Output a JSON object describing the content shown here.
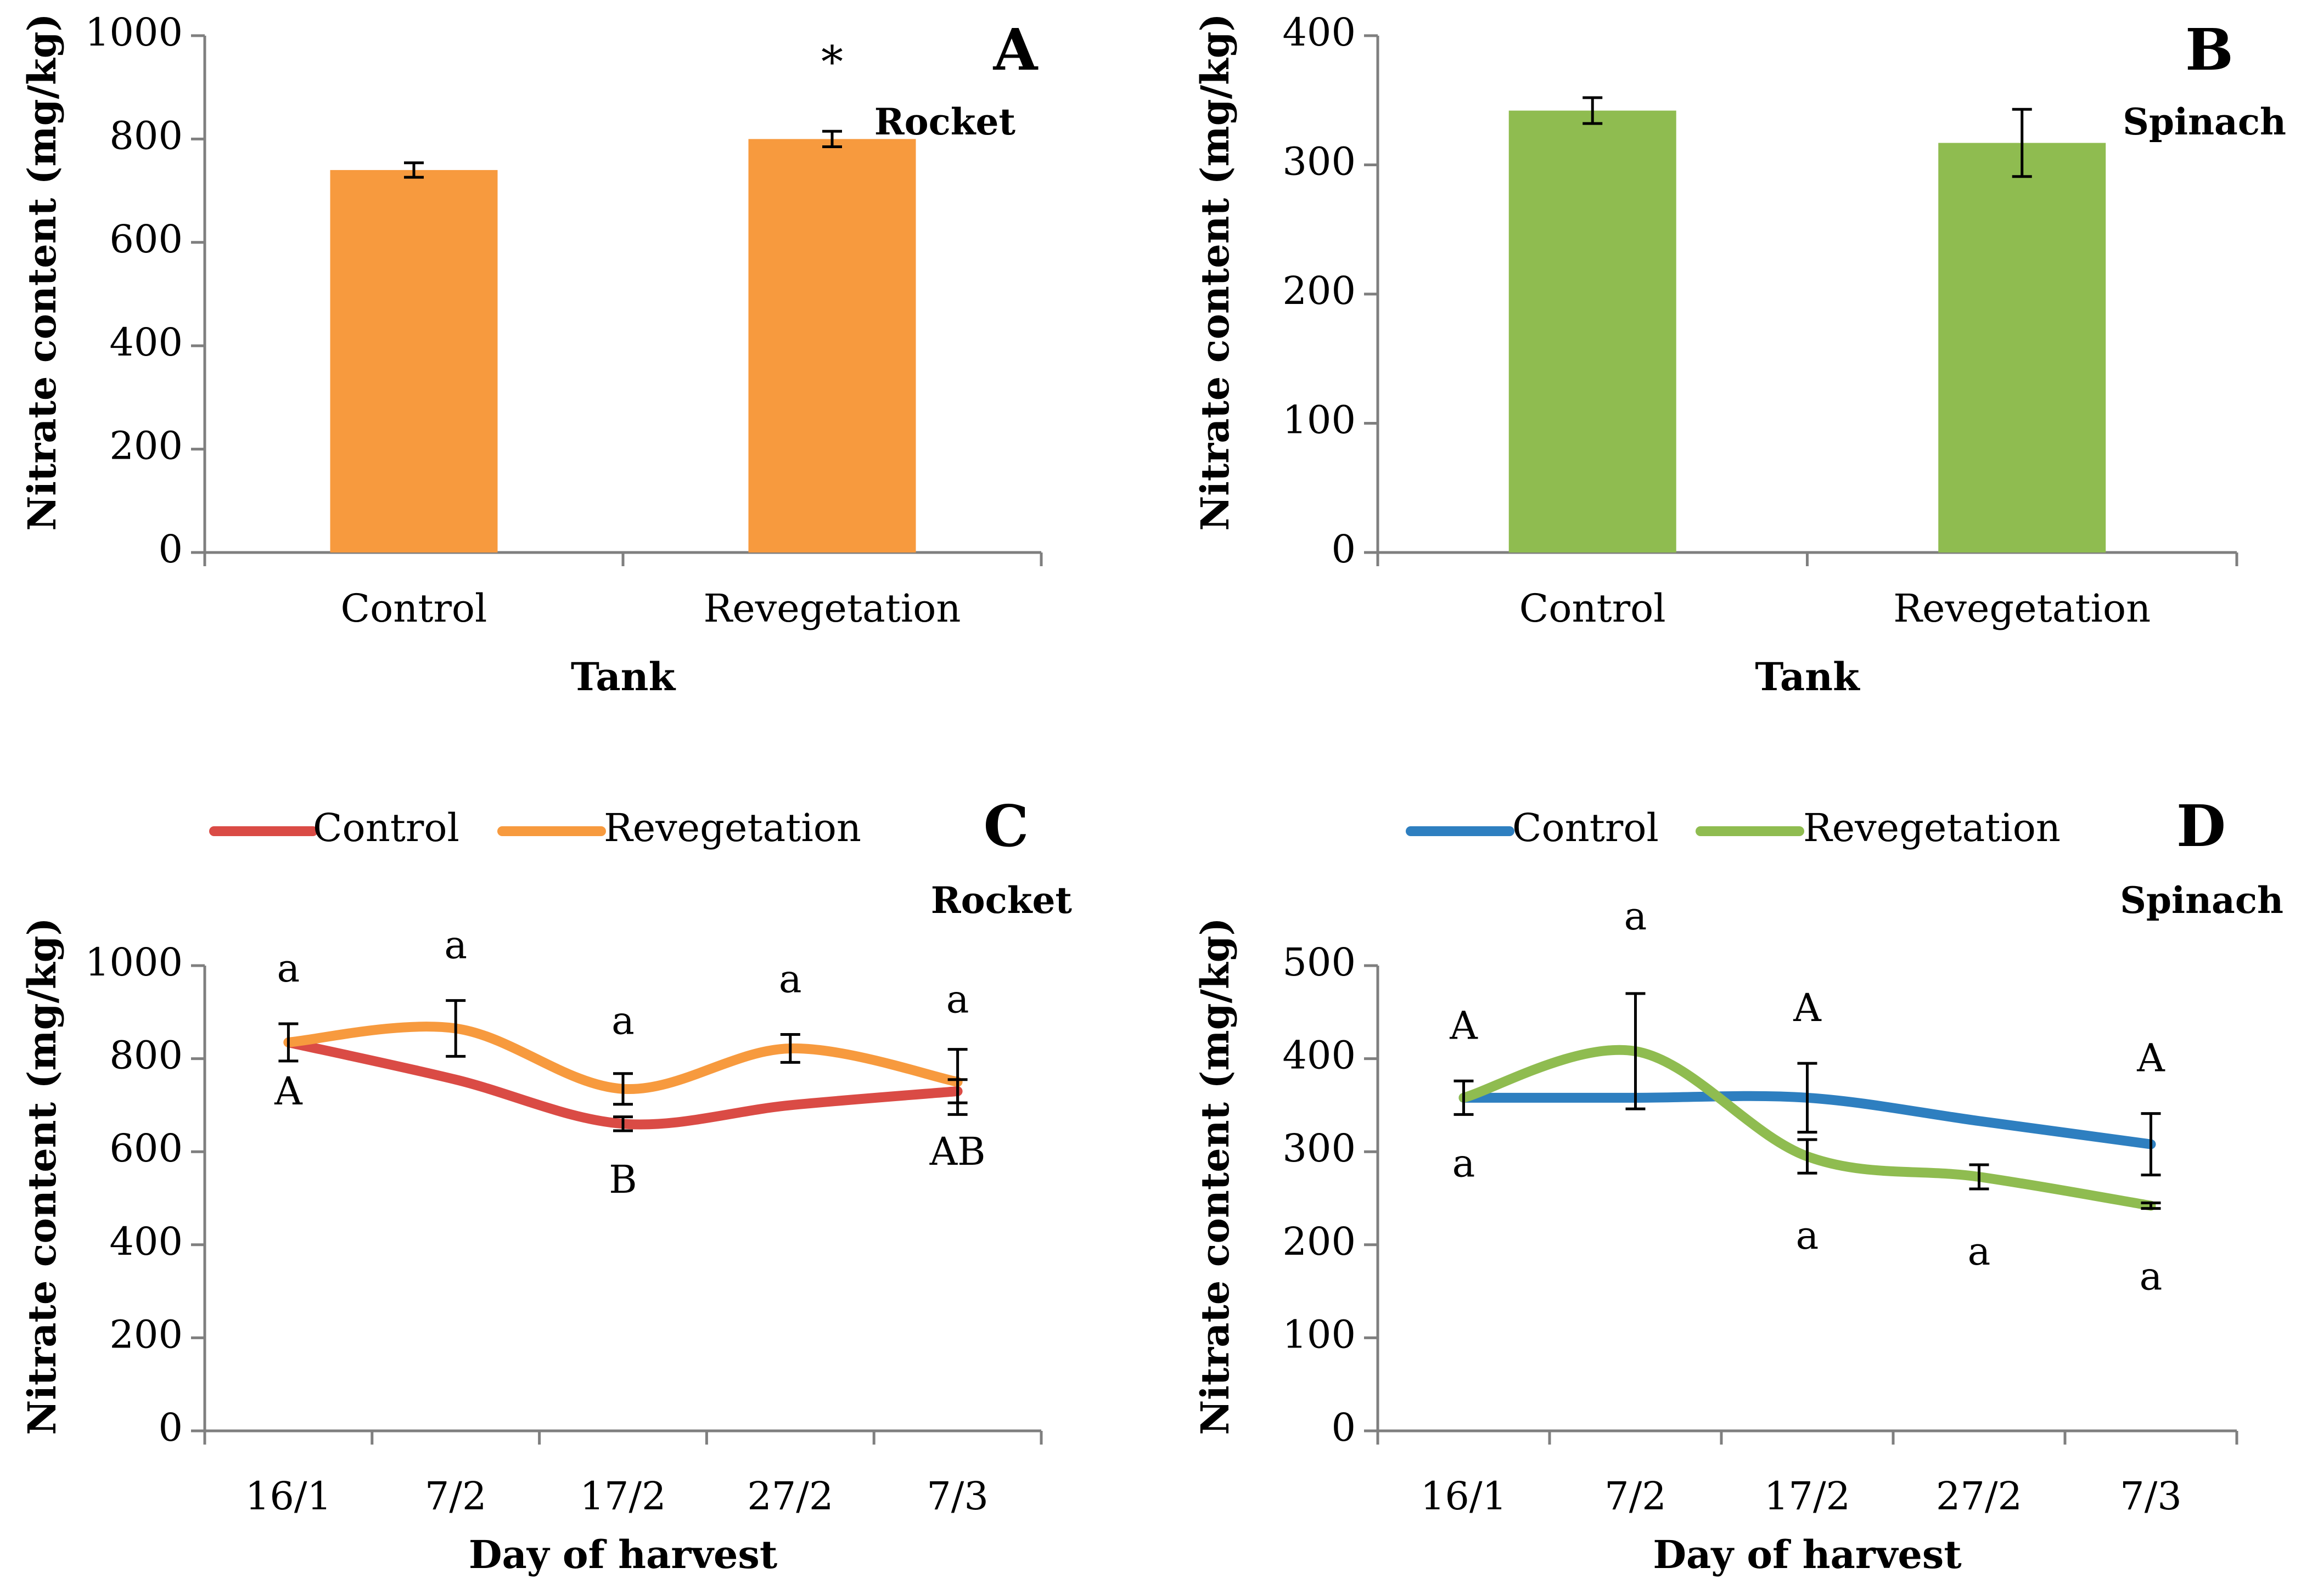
{
  "colors": {
    "rocket_bar": "#F79A3E",
    "spinach_bar": "#8FBC50",
    "rocket_control_line": "#DA4B45",
    "rocket_reveg_line": "#F79A3E",
    "spinach_control_line": "#2E7FC0",
    "spinach_reveg_line": "#8FBC50",
    "axis": "#7f7f7f",
    "text": "#000000"
  },
  "chart_data": [
    {
      "panel": "A",
      "subtitle": "Rocket",
      "type": "bar",
      "xlabel": "Tank",
      "ylabel": "Nitrate content (mg/kg)",
      "ylim": [
        0,
        1000
      ],
      "yticks": [
        "0",
        "200",
        "400",
        "600",
        "800",
        "1000"
      ],
      "categories": [
        "Control",
        "Revegetation"
      ],
      "values": [
        740,
        800
      ],
      "errors": [
        14,
        15
      ],
      "annotations": [
        "",
        "*"
      ]
    },
    {
      "panel": "B",
      "subtitle": "Spinach",
      "type": "bar",
      "xlabel": "Tank",
      "ylabel": "Nitrate content (mg/kg)",
      "ylim": [
        0,
        400
      ],
      "yticks": [
        "0",
        "100",
        "200",
        "300",
        "400"
      ],
      "categories": [
        "Control",
        "Revegetation"
      ],
      "values": [
        342,
        317
      ],
      "errors": [
        10,
        26
      ],
      "annotations": [
        "",
        ""
      ]
    },
    {
      "panel": "C",
      "subtitle": "Rocket",
      "type": "line",
      "xlabel": "Day of harvest",
      "ylabel": "Nitrate content (mg/kg)",
      "ylim": [
        0,
        1000
      ],
      "yticks": [
        "0",
        "200",
        "400",
        "600",
        "800",
        "1000"
      ],
      "categories": [
        "16/1",
        "7/2",
        "17/2",
        "27/2",
        "7/3"
      ],
      "legend": [
        "Control",
        "Revegetation"
      ],
      "series": [
        {
          "name": "Control",
          "values": [
            835,
            755,
            660,
            700,
            730
          ],
          "errors": [
            0,
            0,
            15,
            0,
            25
          ],
          "letters": [
            "A",
            "",
            "B",
            "",
            "AB"
          ]
        },
        {
          "name": "Revegetation",
          "values": [
            835,
            865,
            735,
            822,
            750
          ],
          "errors": [
            40,
            60,
            33,
            30,
            70
          ],
          "letters": [
            "a",
            "a",
            "a",
            "a",
            "a"
          ]
        }
      ]
    },
    {
      "panel": "D",
      "subtitle": "Spinach",
      "type": "line",
      "xlabel": "Day of harvest",
      "ylabel": "Nitrate content (mg/kg)",
      "ylim": [
        0,
        500
      ],
      "yticks": [
        "0",
        "100",
        "200",
        "300",
        "400",
        "500"
      ],
      "categories": [
        "16/1",
        "7/2",
        "17/2",
        "27/2",
        "7/3"
      ],
      "legend": [
        "Control",
        "Revegetation"
      ],
      "series": [
        {
          "name": "Control",
          "values": [
            358,
            358,
            358,
            333,
            308
          ],
          "errors": [
            18,
            0,
            37,
            0,
            33
          ],
          "letters": [
            "A",
            "",
            "A",
            "",
            "A"
          ]
        },
        {
          "name": "Revegetation",
          "values": [
            358,
            408,
            295,
            273,
            242
          ],
          "errors": [
            0,
            62,
            18,
            13,
            3
          ],
          "letters": [
            "a",
            "a",
            "a",
            "a",
            "a"
          ]
        }
      ]
    }
  ]
}
